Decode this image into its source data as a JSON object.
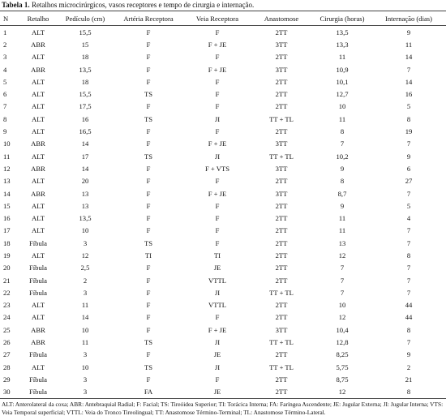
{
  "title_label": "Tabela 1.",
  "title": "Retalhos microcirúrgicos, vasos receptores e tempo de cirurgia e internação.",
  "table": {
    "headers": [
      "N",
      "Retalho",
      "Pedículo (cm)",
      "Artéria Receptora",
      "Veia Receptora",
      "Anastomose",
      "Cirurgia (horas)",
      "Internação (dias)"
    ],
    "rows": [
      [
        "1",
        "ALT",
        "15,5",
        "F",
        "F",
        "2TT",
        "13,5",
        "9"
      ],
      [
        "2",
        "ABR",
        "15",
        "F",
        "F + JE",
        "3TT",
        "13,3",
        "11"
      ],
      [
        "3",
        "ALT",
        "18",
        "F",
        "F",
        "2TT",
        "11",
        "14"
      ],
      [
        "4",
        "ABR",
        "13,5",
        "F",
        "F + JE",
        "3TT",
        "10,9",
        "7"
      ],
      [
        "5",
        "ALT",
        "18",
        "F",
        "F",
        "2TT",
        "10,1",
        "14"
      ],
      [
        "6",
        "ALT",
        "15,5",
        "TS",
        "F",
        "2TT",
        "12,7",
        "16"
      ],
      [
        "7",
        "ALT",
        "17,5",
        "F",
        "F",
        "2TT",
        "10",
        "5"
      ],
      [
        "8",
        "ALT",
        "16",
        "TS",
        "JI",
        "TT + TL",
        "11",
        "8"
      ],
      [
        "9",
        "ALT",
        "16,5",
        "F",
        "F",
        "2TT",
        "8",
        "19"
      ],
      [
        "10",
        "ABR",
        "14",
        "F",
        "F + JE",
        "3TT",
        "7",
        "7"
      ],
      [
        "11",
        "ALT",
        "17",
        "TS",
        "JI",
        "TT + TL",
        "10,2",
        "9"
      ],
      [
        "12",
        "ABR",
        "14",
        "F",
        "F + VTS",
        "3TT",
        "9",
        "6"
      ],
      [
        "13",
        "ALT",
        "20",
        "F",
        "F",
        "2TT",
        "8",
        "27"
      ],
      [
        "14",
        "ABR",
        "13",
        "F",
        "F + JE",
        "3TT",
        "8,7",
        "7"
      ],
      [
        "15",
        "ALT",
        "13",
        "F",
        "F",
        "2TT",
        "9",
        "5"
      ],
      [
        "16",
        "ALT",
        "13,5",
        "F",
        "F",
        "2TT",
        "11",
        "4"
      ],
      [
        "17",
        "ALT",
        "10",
        "F",
        "F",
        "2TT",
        "11",
        "7"
      ],
      [
        "18",
        "Fíbula",
        "3",
        "TS",
        "F",
        "2TT",
        "13",
        "7"
      ],
      [
        "19",
        "ALT",
        "12",
        "TI",
        "TI",
        "2TT",
        "12",
        "8"
      ],
      [
        "20",
        "Fíbula",
        "2,5",
        "F",
        "JE",
        "2TT",
        "7",
        "7"
      ],
      [
        "21",
        "Fíbula",
        "2",
        "F",
        "VTTL",
        "2TT",
        "7",
        "7"
      ],
      [
        "22",
        "Fíbula",
        "3",
        "F",
        "JI",
        "TT + TL",
        "7",
        "7"
      ],
      [
        "23",
        "ALT",
        "11",
        "F",
        "VTTL",
        "2TT",
        "10",
        "44"
      ],
      [
        "24",
        "ALT",
        "14",
        "F",
        "F",
        "2TT",
        "12",
        "44"
      ],
      [
        "25",
        "ABR",
        "10",
        "F",
        "F + JE",
        "3TT",
        "10,4",
        "8"
      ],
      [
        "26",
        "ABR",
        "11",
        "TS",
        "JI",
        "TT + TL",
        "12,8",
        "7"
      ],
      [
        "27",
        "Fíbula",
        "3",
        "F",
        "JE",
        "2TT",
        "8,25",
        "9"
      ],
      [
        "28",
        "ALT",
        "10",
        "TS",
        "JI",
        "TT + TL",
        "5,75",
        "2"
      ],
      [
        "29",
        "Fíbula",
        "3",
        "F",
        "F",
        "2TT",
        "8,75",
        "21"
      ],
      [
        "30",
        "Fíbula",
        "3",
        "FA",
        "JE",
        "2TT",
        "12",
        "8"
      ]
    ]
  },
  "footnote": "ALT: Anterolateral da coxa; ABR: Antebraquial Radial; F: Facial; TS: Tireóidea Superior; TI: Torácica Interna; FA: Faríngea Ascendente; JE: Jugular Externa; JI: Jugular Interna; VTS: Veia Temporal superficial; VTTL: Veia do Tronco Tireolingual; TT: Anastomose Término-Terminal; TL: Anastomose Término-Lateral."
}
